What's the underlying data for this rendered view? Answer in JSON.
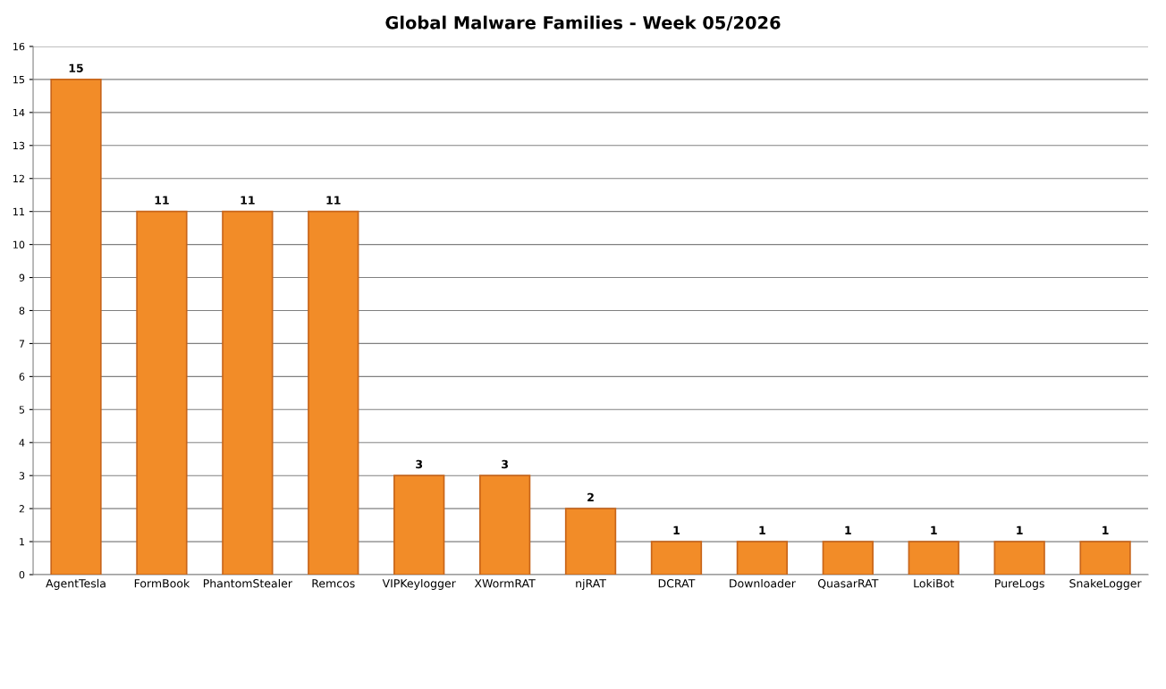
{
  "chart_data": {
    "type": "bar",
    "title": "Global Malware Families - Week 05/2026",
    "categories": [
      "AgentTesla",
      "FormBook",
      "PhantomStealer",
      "Remcos",
      "VIPKeylogger",
      "XWormRAT",
      "njRAT",
      "DCRAT",
      "Downloader",
      "QuasarRAT",
      "LokiBot",
      "PureLogs",
      "SnakeLogger"
    ],
    "values": [
      15,
      11,
      11,
      11,
      3,
      3,
      2,
      1,
      1,
      1,
      1,
      1,
      1
    ],
    "color": "#f28c28",
    "ylim": [
      0,
      16
    ],
    "yticks": [
      0,
      1,
      2,
      3,
      4,
      5,
      6,
      7,
      8,
      9,
      10,
      11,
      12,
      13,
      14,
      15,
      16
    ],
    "grid": "y",
    "data_labels": true
  }
}
